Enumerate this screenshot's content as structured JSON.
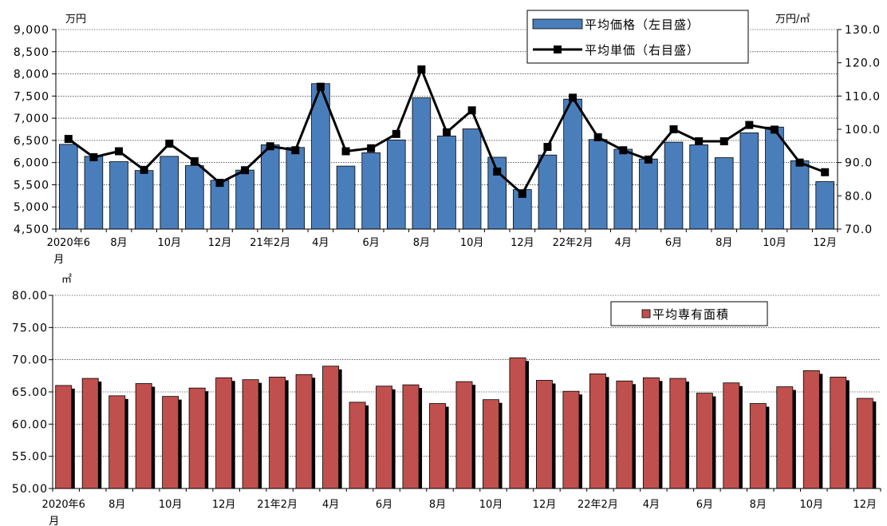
{
  "chart_data": [
    {
      "type": "bar+line",
      "y_unit_left": "万円",
      "y_unit_right": "万円/㎡",
      "ylim_left": [
        4500,
        9000
      ],
      "yticks_left": [
        "4,500",
        "5,000",
        "5,500",
        "6,000",
        "6,500",
        "7,000",
        "7,500",
        "8,000",
        "8,500",
        "9,000"
      ],
      "ylim_right": [
        70,
        130
      ],
      "yticks_right": [
        "70.0",
        "80.0",
        "90.0",
        "100.0",
        "110.0",
        "120.0",
        "130.0"
      ],
      "x_tick_labels": [
        {
          "i": 0,
          "text": "2020年6",
          "text2": "月"
        },
        {
          "i": 2,
          "text": "8月"
        },
        {
          "i": 4,
          "text": "10月"
        },
        {
          "i": 6,
          "text": "12月"
        },
        {
          "i": 8,
          "text": "21年2月"
        },
        {
          "i": 10,
          "text": "4月"
        },
        {
          "i": 12,
          "text": "6月"
        },
        {
          "i": 14,
          "text": "8月"
        },
        {
          "i": 16,
          "text": "10月"
        },
        {
          "i": 18,
          "text": "12月"
        },
        {
          "i": 20,
          "text": "22年2月"
        },
        {
          "i": 22,
          "text": "4月"
        },
        {
          "i": 24,
          "text": "6月"
        },
        {
          "i": 26,
          "text": "8月"
        },
        {
          "i": 28,
          "text": "10月"
        },
        {
          "i": 30,
          "text": "12月"
        }
      ],
      "gridlines": true,
      "legend": {
        "position": "top-right",
        "entries": [
          {
            "label": "平均価格（左目盛）",
            "kind": "bar",
            "color": "#4a7ebb"
          },
          {
            "label": "平均単価（右目盛）",
            "kind": "line",
            "color": "#000000"
          }
        ]
      },
      "series": [
        {
          "name": "平均価格（左目盛）",
          "kind": "bar",
          "axis": "left",
          "color": "#4a7ebb",
          "values": [
            6410,
            6140,
            6020,
            5820,
            6140,
            5930,
            5600,
            5830,
            6400,
            6340,
            7780,
            5920,
            6220,
            6510,
            7460,
            6600,
            6760,
            6120,
            5390,
            6170,
            7430,
            6520,
            6300,
            6080,
            6460,
            6400,
            6110,
            6670,
            6800,
            6040,
            5570
          ]
        },
        {
          "name": "平均単価（右目盛）",
          "kind": "line",
          "axis": "right",
          "color": "#000000",
          "values": [
            97.1,
            91.6,
            93.4,
            87.8,
            95.7,
            90.4,
            83.9,
            87.7,
            94.9,
            93.7,
            112.8,
            93.4,
            94.3,
            98.6,
            118.0,
            99.1,
            105.7,
            87.3,
            80.6,
            94.7,
            109.5,
            97.6,
            93.7,
            90.9,
            100.0,
            96.4,
            96.4,
            101.3,
            99.9,
            90.0,
            87.1
          ]
        }
      ]
    },
    {
      "type": "bar",
      "y_unit": "㎡",
      "ylim": [
        50,
        80
      ],
      "yticks": [
        "50.00",
        "55.00",
        "60.00",
        "65.00",
        "70.00",
        "75.00",
        "80.00"
      ],
      "x_tick_labels": [
        {
          "i": 0,
          "text": "2020年6",
          "text2": "月"
        },
        {
          "i": 2,
          "text": "8月"
        },
        {
          "i": 4,
          "text": "10月"
        },
        {
          "i": 6,
          "text": "12月"
        },
        {
          "i": 8,
          "text": "21年2月"
        },
        {
          "i": 10,
          "text": "4月"
        },
        {
          "i": 12,
          "text": "6月"
        },
        {
          "i": 14,
          "text": "8月"
        },
        {
          "i": 16,
          "text": "10月"
        },
        {
          "i": 18,
          "text": "12月"
        },
        {
          "i": 20,
          "text": "22年2月"
        },
        {
          "i": 22,
          "text": "4月"
        },
        {
          "i": 24,
          "text": "6月"
        },
        {
          "i": 26,
          "text": "8月"
        },
        {
          "i": 28,
          "text": "10月"
        },
        {
          "i": 30,
          "text": "12月"
        }
      ],
      "gridlines": true,
      "legend": {
        "position": "top-right",
        "entries": [
          {
            "label": "平均専有面積",
            "kind": "bar",
            "color": "#c0504d"
          }
        ]
      },
      "series": [
        {
          "name": "平均専有面積",
          "kind": "bar",
          "color": "#c0504d",
          "values": [
            66.0,
            67.1,
            64.4,
            66.3,
            64.3,
            65.6,
            67.2,
            66.9,
            67.3,
            67.7,
            69.0,
            63.4,
            65.9,
            66.1,
            63.2,
            66.6,
            63.8,
            70.3,
            66.8,
            65.1,
            67.8,
            66.7,
            67.2,
            67.1,
            64.8,
            66.4,
            63.2,
            65.8,
            68.3,
            67.3,
            64.0
          ]
        }
      ]
    }
  ]
}
